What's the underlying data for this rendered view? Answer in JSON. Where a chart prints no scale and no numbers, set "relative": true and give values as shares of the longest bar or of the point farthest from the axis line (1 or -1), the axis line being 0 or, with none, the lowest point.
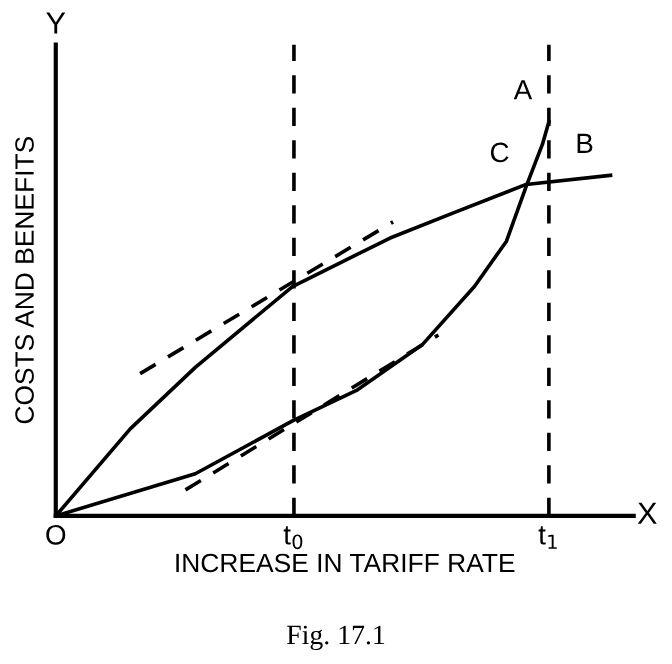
{
  "chart_data": {
    "type": "line",
    "relative": true,
    "xlabel": "INCREASE IN TARIFF RATE",
    "ylabel": "COSTS AND BENEFITS",
    "xlim": [
      0,
      1.172
    ],
    "xticks": [
      {
        "value": 0,
        "label": "O"
      },
      {
        "value": 0.483,
        "label": "t$_{0}$"
      },
      {
        "value": 1.0,
        "label": "t$_{1}$"
      }
    ],
    "series": [
      {
        "color": "#000000",
        "x": [
          0,
          0.151,
          0.283,
          0.48,
          0.678,
          0.809,
          0.954,
          1.125
        ],
        "values": [
          0,
          0.221,
          0.377,
          0.582,
          0.705,
          0.77,
          0.841,
          0.864
        ]
      },
      {
        "color": "#000000",
        "x": [
          0,
          0.283,
          0.48,
          0.612,
          0.743,
          0.849,
          0.914,
          0.954,
          0.987,
          1.0
        ],
        "values": [
          0,
          0.107,
          0.241,
          0.32,
          0.434,
          0.582,
          0.697,
          0.836,
          0.943,
          1.0
        ]
      },
      {
        "color": "#000000",
        "line_style": "dashed",
        "x": [
          0.171,
          0.684
        ],
        "values": [
          0.361,
          0.746
        ]
      },
      {
        "color": "#000000",
        "line_style": "dashed",
        "x": [
          0.263,
          0.776
        ],
        "values": [
          0.066,
          0.459
        ]
      }
    ],
    "ref_lines": [
      {
        "axis": "x",
        "value": 0.483,
        "line_style": "dashed",
        "color": "#000000"
      },
      {
        "axis": "x",
        "value": 1.0,
        "line_style": "dashed",
        "color": "#000000"
      }
    ],
    "annotations": [
      {
        "text": "A",
        "x": 1.0,
        "y": 1.0
      },
      {
        "text": "B",
        "x": 1.125,
        "y": 0.864
      },
      {
        "text": "C",
        "x": 0.954,
        "y": 0.841
      },
      "X",
      "Y",
      "Fig. 17.1"
    ],
    "grid": false,
    "legend": false,
    "marker": "none"
  }
}
